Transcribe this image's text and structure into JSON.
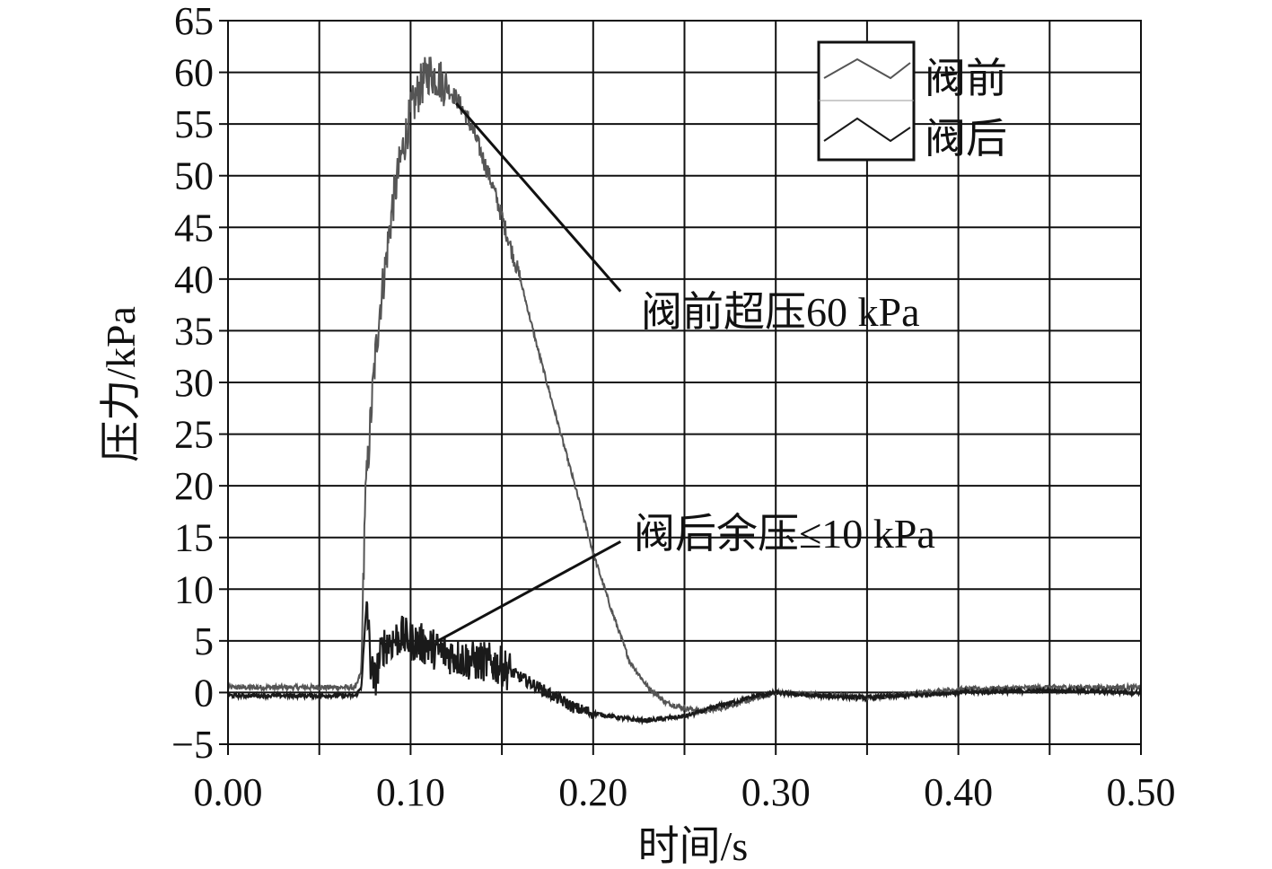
{
  "chart_data": {
    "type": "line",
    "xlabel": "时间/s",
    "ylabel": "压力/kPa",
    "xlim": [
      0.0,
      0.5
    ],
    "ylim": [
      -5,
      65
    ],
    "x_ticks": [
      "0.00",
      "0.10",
      "0.20",
      "0.30",
      "0.40",
      "0.50"
    ],
    "y_ticks": [
      "−5",
      "0",
      "5",
      "10",
      "15",
      "20",
      "25",
      "30",
      "35",
      "40",
      "45",
      "50",
      "55",
      "60",
      "65"
    ],
    "grid": true,
    "legend": {
      "placement": "top-right",
      "entries": [
        "阀前",
        "阀后"
      ]
    },
    "annotations": [
      {
        "text": "阀前超压60 kPa",
        "points_to": {
          "x": 0.125,
          "y": 57
        },
        "anchor": {
          "x": 0.215,
          "y": 38.8
        }
      },
      {
        "text": "阀后余压≤10 kPa",
        "points_to": {
          "x": 0.115,
          "y": 5
        },
        "anchor": {
          "x": 0.215,
          "y": 14.6
        }
      }
    ],
    "series": [
      {
        "name": "阀前",
        "color": "#555555",
        "x": [
          0.0,
          0.07,
          0.073,
          0.075,
          0.078,
          0.08,
          0.083,
          0.086,
          0.09,
          0.095,
          0.1,
          0.105,
          0.11,
          0.115,
          0.12,
          0.125,
          0.13,
          0.135,
          0.14,
          0.145,
          0.15,
          0.16,
          0.17,
          0.18,
          0.19,
          0.2,
          0.21,
          0.22,
          0.23,
          0.24,
          0.25,
          0.26,
          0.27,
          0.28,
          0.3,
          0.32,
          0.35,
          0.4,
          0.45,
          0.5
        ],
        "y": [
          0.5,
          0.5,
          2.0,
          18.0,
          26.0,
          31.0,
          37.0,
          41.0,
          47.0,
          52.0,
          56.0,
          58.5,
          60.0,
          59.5,
          58.5,
          57.5,
          56.0,
          54.0,
          51.5,
          49.0,
          46.0,
          40.0,
          33.0,
          26.5,
          20.0,
          13.5,
          8.0,
          3.0,
          0.5,
          -1.0,
          -1.5,
          -1.8,
          -1.5,
          -1.0,
          0.0,
          -0.2,
          -0.5,
          0.3,
          0.5,
          0.5
        ]
      },
      {
        "name": "阀后",
        "color": "#1a1a1a",
        "x": [
          0.0,
          0.07,
          0.073,
          0.076,
          0.078,
          0.08,
          0.085,
          0.09,
          0.095,
          0.1,
          0.105,
          0.11,
          0.115,
          0.12,
          0.125,
          0.13,
          0.135,
          0.14,
          0.145,
          0.15,
          0.16,
          0.17,
          0.18,
          0.19,
          0.2,
          0.21,
          0.22,
          0.23,
          0.24,
          0.25,
          0.26,
          0.27,
          0.28,
          0.29,
          0.3,
          0.32,
          0.35,
          0.4,
          0.45,
          0.5
        ],
        "y": [
          -0.3,
          -0.3,
          0.5,
          9.0,
          3.0,
          1.0,
          4.5,
          5.0,
          5.5,
          5.0,
          4.8,
          4.5,
          4.0,
          3.8,
          3.5,
          3.2,
          3.0,
          3.0,
          2.8,
          2.5,
          1.5,
          0.5,
          -0.5,
          -1.5,
          -2.0,
          -2.3,
          -2.6,
          -2.7,
          -2.5,
          -2.3,
          -1.8,
          -1.2,
          -0.8,
          -0.3,
          0.0,
          -0.3,
          -0.5,
          0.0,
          0.2,
          0.0
        ]
      }
    ]
  }
}
